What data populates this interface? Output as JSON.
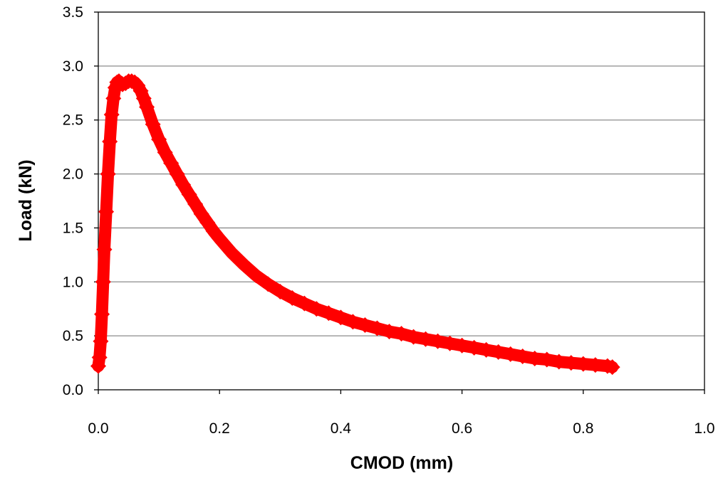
{
  "chart_data": {
    "type": "scatter",
    "xlabel": "CMOD (mm)",
    "ylabel": "Load (kN)",
    "xlim": [
      0.0,
      1.0
    ],
    "ylim": [
      0.0,
      3.5
    ],
    "x_ticks": [
      "0.0",
      "0.2",
      "0.4",
      "0.6",
      "0.8",
      "1.0"
    ],
    "y_ticks": [
      "0.0",
      "0.5",
      "1.0",
      "1.5",
      "2.0",
      "2.5",
      "3.0",
      "3.5"
    ],
    "grid": "horizontal",
    "legend": "none",
    "marker": "diamond",
    "color": "#ff0000",
    "series": [
      {
        "x": [
          0.0,
          0.002,
          0.004,
          0.006,
          0.008,
          0.01,
          0.013,
          0.016,
          0.019,
          0.022,
          0.025,
          0.028,
          0.031,
          0.034,
          0.037,
          0.04,
          0.045,
          0.05,
          0.055,
          0.06,
          0.065,
          0.07,
          0.075,
          0.08,
          0.09,
          0.1,
          0.11,
          0.12,
          0.13,
          0.14,
          0.15,
          0.16,
          0.17,
          0.18,
          0.19,
          0.2,
          0.22,
          0.24,
          0.26,
          0.28,
          0.3,
          0.32,
          0.34,
          0.36,
          0.38,
          0.4,
          0.42,
          0.44,
          0.46,
          0.48,
          0.5,
          0.52,
          0.54,
          0.56,
          0.58,
          0.6,
          0.62,
          0.64,
          0.66,
          0.68,
          0.7,
          0.72,
          0.74,
          0.76,
          0.78,
          0.8,
          0.82,
          0.84,
          0.848
        ],
        "y": [
          0.22,
          0.3,
          0.45,
          0.7,
          1.0,
          1.3,
          1.65,
          2.0,
          2.3,
          2.55,
          2.7,
          2.8,
          2.85,
          2.86,
          2.84,
          2.83,
          2.84,
          2.86,
          2.86,
          2.85,
          2.82,
          2.77,
          2.7,
          2.62,
          2.46,
          2.32,
          2.2,
          2.1,
          2.0,
          1.9,
          1.81,
          1.72,
          1.63,
          1.55,
          1.47,
          1.4,
          1.27,
          1.16,
          1.06,
          0.98,
          0.91,
          0.85,
          0.8,
          0.75,
          0.71,
          0.67,
          0.63,
          0.6,
          0.57,
          0.54,
          0.52,
          0.49,
          0.47,
          0.45,
          0.43,
          0.41,
          0.39,
          0.37,
          0.35,
          0.33,
          0.31,
          0.29,
          0.28,
          0.26,
          0.25,
          0.24,
          0.23,
          0.22,
          0.21
        ]
      }
    ]
  }
}
